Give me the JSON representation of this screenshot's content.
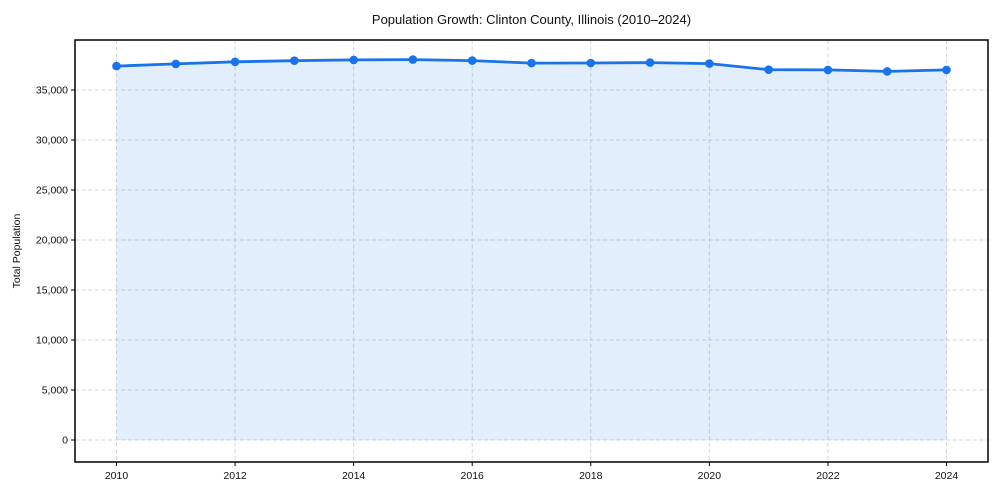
{
  "figure": {
    "title": "Population Growth: Clinton County, Illinois (2010–2024)",
    "y_axis_label": "Total Population"
  },
  "chart_data": {
    "type": "line",
    "title": "Population Growth: Clinton County, Illinois (2010–2024)",
    "xlabel": "",
    "ylabel": "Total Population",
    "x": [
      2010,
      2011,
      2012,
      2013,
      2014,
      2015,
      2016,
      2017,
      2018,
      2019,
      2020,
      2021,
      2022,
      2023,
      2024
    ],
    "values": [
      37390,
      37610,
      37820,
      37930,
      38010,
      38040,
      37940,
      37690,
      37700,
      37740,
      37640,
      37030,
      37010,
      36860,
      37010
    ],
    "xticks": [
      2010,
      2012,
      2014,
      2016,
      2018,
      2020,
      2022,
      2024
    ],
    "yticks": [
      0,
      5000,
      10000,
      15000,
      20000,
      25000,
      30000,
      35000
    ],
    "xlim": [
      2009.3,
      2024.7
    ],
    "ylim": [
      -2200,
      40000
    ],
    "grid": true,
    "legend": false,
    "marker": "circle",
    "area_fill_to": 0,
    "style": {
      "line_color": "#1a73e8",
      "marker_color": "#1a73e8",
      "fill_color": "rgba(26,115,232,0.12)",
      "grid_color": "#d6d6d6",
      "frame_color": "#000000",
      "text_color": "#111111"
    }
  }
}
